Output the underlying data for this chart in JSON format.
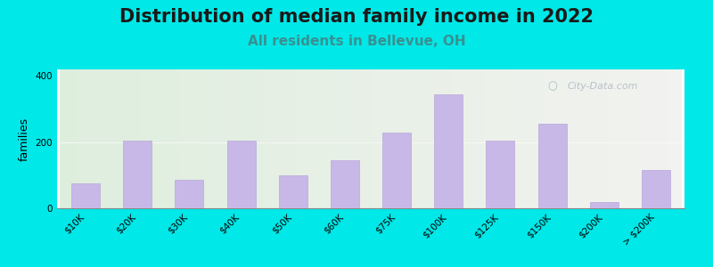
{
  "title": "Distribution of median family income in 2022",
  "subtitle": "All residents in Bellevue, OH",
  "ylabel": "families",
  "categories": [
    "$10K",
    "$20K",
    "$30K",
    "$40K",
    "$50K",
    "$60K",
    "$75K",
    "$100K",
    "$125K",
    "$150K",
    "$200K",
    "> $200K"
  ],
  "values": [
    75,
    205,
    85,
    205,
    100,
    145,
    230,
    345,
    205,
    255,
    20,
    115
  ],
  "bar_color": "#c8b8e8",
  "bar_edge_color": "#b8a8d8",
  "ylim": [
    0,
    420
  ],
  "yticks": [
    0,
    200,
    400
  ],
  "bg_outer": "#00e8e8",
  "title_fontsize": 15,
  "subtitle_fontsize": 11,
  "subtitle_color": "#3a9090",
  "ylabel_fontsize": 9,
  "tick_fontsize": 7.5,
  "watermark_text": "City-Data.com",
  "watermark_color": "#b0b8c0",
  "watermark_icon_color": "#90a8b0"
}
